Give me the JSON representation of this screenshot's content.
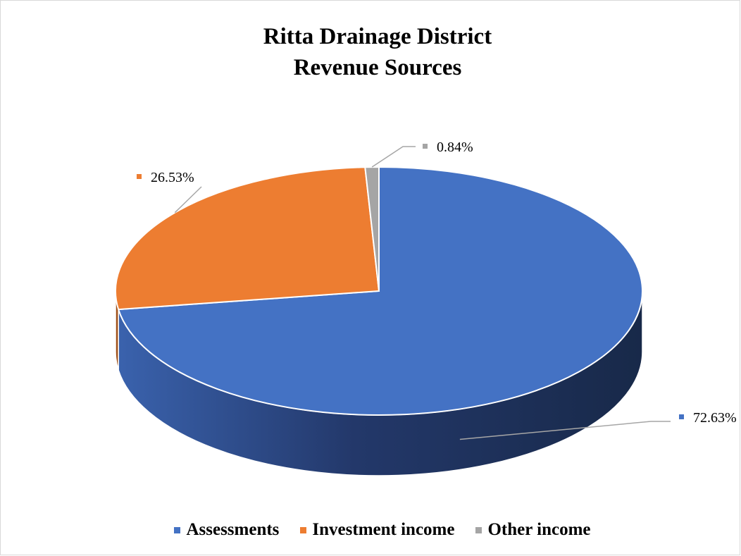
{
  "chart_data": {
    "type": "pie",
    "title": "Ritta Drainage District Revenue Sources",
    "title_lines": [
      "Ritta Drainage District",
      "Revenue Sources"
    ],
    "three_d": true,
    "legend_position": "bottom",
    "slices": [
      {
        "name": "Assessments",
        "value": 72.63,
        "label": "72.63%",
        "color": "#4472C4",
        "side_color": "#26416F"
      },
      {
        "name": "Investment income",
        "value": 26.53,
        "label": "26.53%",
        "color": "#ED7D31",
        "side_color": "#A0521B"
      },
      {
        "name": "Other income",
        "value": 0.84,
        "label": "0.84%",
        "color": "#A5A5A5",
        "side_color": "#707070"
      }
    ]
  }
}
